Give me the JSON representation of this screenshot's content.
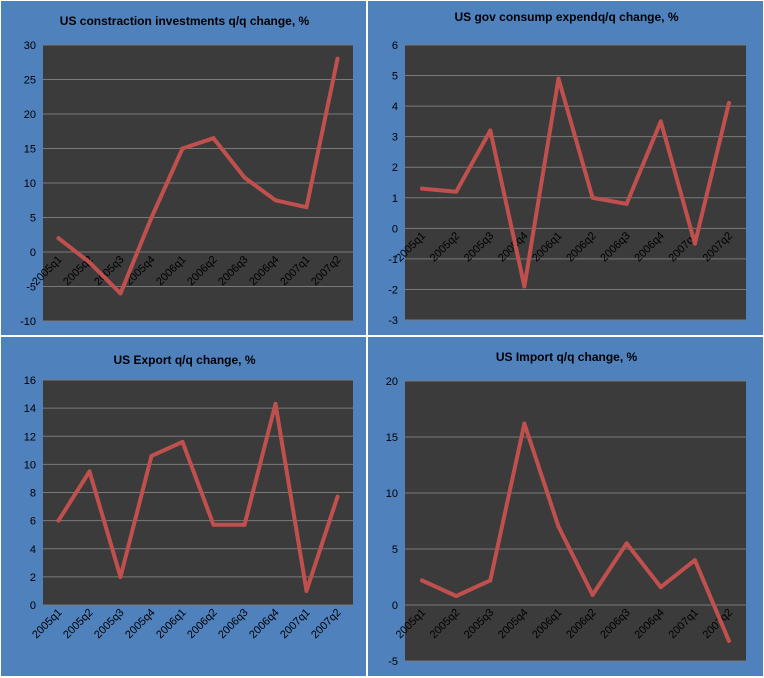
{
  "colors": {
    "panel_background": "#4f81bd",
    "plot_background": "#3b3b3b",
    "gridline": "#7a7a7a",
    "series": "#c0504d"
  },
  "chart_data": [
    {
      "type": "line",
      "title": "US constraction  investments q/q change, %",
      "xlabel": "",
      "ylabel": "",
      "categories": [
        "2005q1",
        "2005q2",
        "2005q3",
        "2005q4",
        "2006q1",
        "2006q2",
        "2006q3",
        "2006q4",
        "2007q1",
        "2007q2"
      ],
      "series": [
        {
          "name": "q/q change, %",
          "values": [
            2.0,
            -1.5,
            -6.0,
            5.0,
            15.0,
            16.5,
            10.8,
            7.5,
            6.5,
            28.0
          ]
        }
      ],
      "ylim": [
        -10,
        30
      ],
      "yticks": [
        -10,
        -5,
        0,
        5,
        10,
        15,
        20,
        25,
        30
      ],
      "grid": true,
      "legend": "none"
    },
    {
      "type": "line",
      "title": "US gov consump  expendq/q change, %",
      "xlabel": "",
      "ylabel": "",
      "categories": [
        "2005q1",
        "2005q2",
        "2005q3",
        "2005q4",
        "2006q1",
        "2006q2",
        "2006q3",
        "2006q4",
        "2007q1",
        "2007q2"
      ],
      "series": [
        {
          "name": "q/q change, %",
          "values": [
            1.3,
            1.2,
            3.2,
            -1.9,
            4.9,
            1.0,
            0.8,
            3.5,
            -0.5,
            4.1
          ]
        }
      ],
      "ylim": [
        -3,
        6
      ],
      "yticks": [
        -3,
        -2,
        -1,
        0,
        1,
        2,
        3,
        4,
        5,
        6
      ],
      "grid": true,
      "legend": "none"
    },
    {
      "type": "line",
      "title": "US Export  q/q change, %",
      "xlabel": "",
      "ylabel": "",
      "categories": [
        "2005q1",
        "2005q2",
        "2005q3",
        "2005q4",
        "2006q1",
        "2006q2",
        "2006q3",
        "2006q4",
        "2007q1",
        "2007q2"
      ],
      "series": [
        {
          "name": "q/q change, %",
          "values": [
            6.0,
            9.5,
            2.0,
            10.6,
            11.6,
            5.7,
            5.7,
            14.3,
            1.0,
            7.7
          ]
        }
      ],
      "ylim": [
        0,
        16
      ],
      "yticks": [
        0,
        2,
        4,
        6,
        8,
        10,
        12,
        14,
        16
      ],
      "grid": true,
      "legend": "none"
    },
    {
      "type": "line",
      "title": "US Import  q/q change, %",
      "xlabel": "",
      "ylabel": "",
      "categories": [
        "2005q1",
        "2005q2",
        "2005q3",
        "2005q4",
        "2006q1",
        "2006q2",
        "2006q3",
        "2006q4",
        "2007q1",
        "2007q2"
      ],
      "series": [
        {
          "name": "q/q change, %",
          "values": [
            2.2,
            0.8,
            2.2,
            16.2,
            7.0,
            0.9,
            5.5,
            1.6,
            4.0,
            -3.2
          ]
        }
      ],
      "ylim": [
        -5,
        20
      ],
      "yticks": [
        -5,
        0,
        5,
        10,
        15,
        20
      ],
      "grid": true,
      "legend": "none"
    }
  ]
}
